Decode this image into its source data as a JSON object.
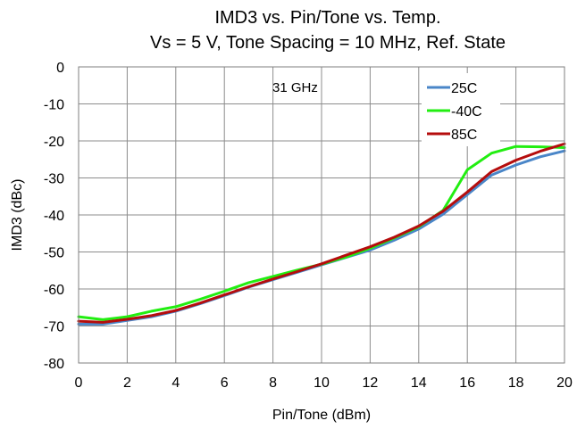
{
  "chart_data": {
    "type": "line",
    "title": "IMD3 vs. Pin/Tone vs. Temp.",
    "subtitle": "Vs = 5 V, Tone Spacing = 10 MHz, Ref. State",
    "xlabel": "Pin/Tone (dBm)",
    "ylabel": "IMD3 (dBc)",
    "xlim": [
      0,
      20
    ],
    "ylim": [
      -80,
      0
    ],
    "xticks": [
      0,
      2,
      4,
      6,
      8,
      10,
      12,
      14,
      16,
      18,
      20
    ],
    "yticks": [
      0,
      -10,
      -20,
      -30,
      -40,
      -50,
      -60,
      -70,
      -80
    ],
    "xtick_labels": [
      "0",
      "2",
      "4",
      "6",
      "8",
      "10",
      "12",
      "14",
      "16",
      "18",
      "20"
    ],
    "ytick_labels": [
      "0",
      "-10",
      "-20",
      "-30",
      "-40",
      "-50",
      "-60",
      "-70",
      "-80"
    ],
    "grid": true,
    "legend_position": "top-right",
    "annotation": "31 GHz",
    "x": [
      0,
      1,
      2,
      3,
      4,
      5,
      6,
      7,
      8,
      9,
      10,
      11,
      12,
      13,
      14,
      15,
      16,
      17,
      18,
      19,
      20
    ],
    "series": [
      {
        "name": "25C",
        "color": "#4a86c8",
        "values": [
          -69.5,
          -69.5,
          -68.5,
          -67.5,
          -66.0,
          -64.0,
          -61.8,
          -59.5,
          -57.5,
          -55.5,
          -53.5,
          -51.5,
          -49.5,
          -46.8,
          -43.8,
          -39.8,
          -34.5,
          -29.2,
          -26.5,
          -24.3,
          -22.7
        ]
      },
      {
        "name": "-40C",
        "color": "#22ee11",
        "values": [
          -67.5,
          -68.3,
          -67.5,
          -66.0,
          -64.8,
          -62.8,
          -60.6,
          -58.3,
          -56.6,
          -54.9,
          -53.3,
          -51.4,
          -49.0,
          -46.2,
          -43.2,
          -38.8,
          -27.8,
          -23.3,
          -21.5,
          -21.6,
          -21.8
        ]
      },
      {
        "name": "85C",
        "color": "#b50d0d",
        "values": [
          -68.7,
          -69.0,
          -68.2,
          -67.2,
          -65.8,
          -63.8,
          -61.6,
          -59.4,
          -57.3,
          -55.3,
          -53.2,
          -50.9,
          -48.6,
          -46.0,
          -43.0,
          -39.0,
          -33.8,
          -28.3,
          -25.2,
          -22.8,
          -20.8
        ]
      }
    ]
  }
}
